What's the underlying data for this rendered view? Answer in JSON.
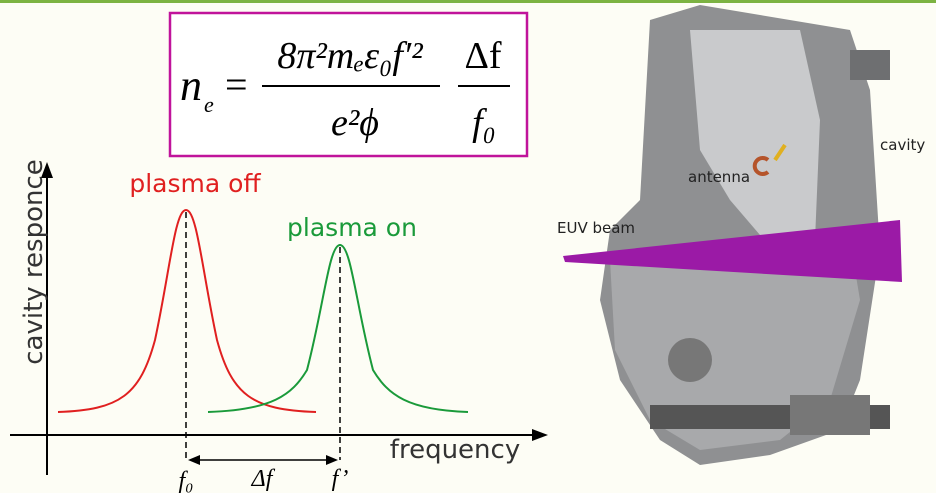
{
  "formula": {
    "lhs": "n",
    "lhs_sub": "e",
    "equals": "=",
    "numerator": "8π²mₑε₀f′²",
    "denominator": "e²ϕ",
    "ratio_numerator": "Δf",
    "ratio_denominator": "f₀"
  },
  "plot": {
    "y_label": "cavity responce",
    "x_label": "frequency",
    "curve_off": "plasma off",
    "curve_on": "plasma on",
    "f0": "f₀",
    "delta": "Δf",
    "f_prime": "f’"
  },
  "figure": {
    "beam": "EUV beam",
    "antenna": "antenna",
    "cavity": "cavity"
  }
}
